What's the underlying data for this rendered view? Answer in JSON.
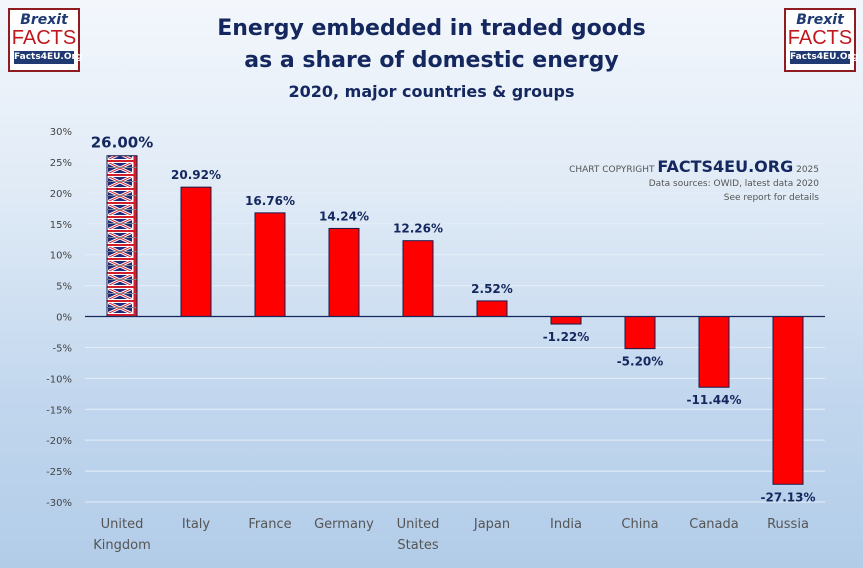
{
  "header": {
    "title_line1": "Energy embedded in traded goods",
    "title_line2": "as a share of domestic energy",
    "subtitle": "2020, major countries & groups"
  },
  "logo": {
    "line1": "Brexit",
    "line2": "FACTS",
    "line3": "Facts4EU.Org"
  },
  "copyright": {
    "prefix": "CHART COPYRIGHT",
    "brand": "FACTS4EU.ORG",
    "year": "2025",
    "sources": "Data sources: OWID, latest data 2020",
    "note": "See report for details"
  },
  "chart_data": {
    "type": "bar",
    "title": "Energy embedded in traded goods as a share of domestic energy",
    "subtitle": "2020, major countries & groups",
    "xlabel": "",
    "ylabel": "",
    "categories": [
      [
        "United",
        "Kingdom"
      ],
      [
        "Italy"
      ],
      [
        "France"
      ],
      [
        "Germany"
      ],
      [
        "United",
        "States"
      ],
      [
        "Japan"
      ],
      [
        "India"
      ],
      [
        "China"
      ],
      [
        "Canada"
      ],
      [
        "Russia"
      ]
    ],
    "values": [
      26.0,
      20.92,
      16.76,
      14.24,
      12.26,
      2.52,
      -1.22,
      -5.2,
      -11.44,
      -27.13
    ],
    "labels": [
      "26.00%",
      "20.92%",
      "16.76%",
      "14.24%",
      "12.26%",
      "2.52%",
      "-1.22%",
      "-5.20%",
      "-11.44%",
      "-27.13%"
    ],
    "ylim": [
      -30,
      30
    ],
    "yticks": [
      30,
      25,
      20,
      15,
      10,
      5,
      0,
      -5,
      -10,
      -15,
      -20,
      -25,
      -30
    ],
    "ytick_labels": [
      "30%",
      "25%",
      "20%",
      "15%",
      "10%",
      "5%",
      "0%",
      "-5%",
      "-10%",
      "-15%",
      "-20%",
      "-25%",
      "-30%"
    ],
    "grid": true,
    "legend": "none",
    "colors": {
      "bar": "#ff0000",
      "bar_border": "#1a1a4a",
      "uk_pattern": "union-jack",
      "axis": "#14275e"
    }
  }
}
